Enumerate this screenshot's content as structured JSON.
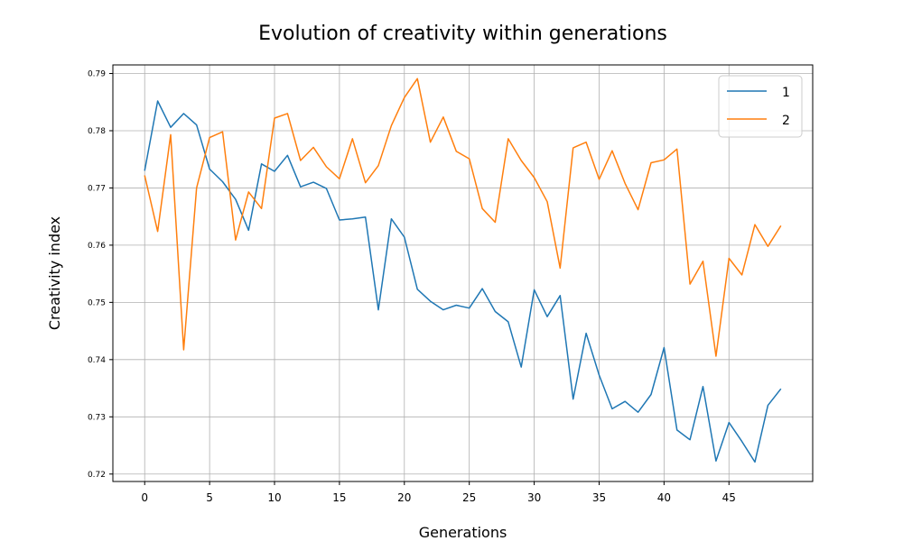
{
  "chart_data": {
    "type": "line",
    "title": "Evolution of creativity within generations",
    "xlabel": "Generations",
    "ylabel": "Creativity index",
    "xlim": [
      -2.45,
      51.45
    ],
    "ylim": [
      0.7187,
      0.7915
    ],
    "xticks": [
      0,
      5,
      10,
      15,
      20,
      25,
      30,
      35,
      40,
      45
    ],
    "yticks": [
      0.72,
      0.73,
      0.74,
      0.75,
      0.76,
      0.77,
      0.78,
      0.79
    ],
    "ytick_labels": [
      "0.72",
      "0.73",
      "0.74",
      "0.75",
      "0.76",
      "0.77",
      "0.78",
      "0.79"
    ],
    "grid": true,
    "legend_position": "top-right",
    "series": [
      {
        "name": "1",
        "color": "#1f77b4",
        "x": [
          0,
          1,
          2,
          3,
          4,
          5,
          6,
          7,
          8,
          9,
          10,
          11,
          12,
          13,
          14,
          15,
          16,
          17,
          18,
          19,
          20,
          21,
          22,
          23,
          24,
          25,
          26,
          27,
          28,
          29,
          30,
          31,
          32,
          33,
          34,
          35,
          36,
          37,
          38,
          39,
          40,
          41,
          42,
          43,
          44,
          45,
          46,
          47,
          48,
          49
        ],
        "values": [
          0.773,
          0.7852,
          0.7806,
          0.783,
          0.781,
          0.7733,
          0.7711,
          0.768,
          0.7626,
          0.7742,
          0.7729,
          0.7757,
          0.7702,
          0.771,
          0.7699,
          0.7644,
          0.7646,
          0.7649,
          0.7487,
          0.7646,
          0.7614,
          0.7523,
          0.7502,
          0.7487,
          0.7495,
          0.749,
          0.7524,
          0.7484,
          0.7466,
          0.7387,
          0.7522,
          0.7475,
          0.7512,
          0.7331,
          0.7446,
          0.7373,
          0.7314,
          0.7327,
          0.7308,
          0.7339,
          0.7421,
          0.7277,
          0.726,
          0.7353,
          0.7223,
          0.729,
          0.7257,
          0.7221,
          0.732,
          0.7349
        ]
      },
      {
        "name": "2",
        "color": "#ff7f0e",
        "x": [
          0,
          1,
          2,
          3,
          4,
          5,
          6,
          7,
          8,
          9,
          10,
          11,
          12,
          13,
          14,
          15,
          16,
          17,
          18,
          19,
          20,
          21,
          22,
          23,
          24,
          25,
          26,
          27,
          28,
          29,
          30,
          31,
          32,
          33,
          34,
          35,
          36,
          37,
          38,
          39,
          40,
          41,
          42,
          43,
          44,
          45,
          46,
          47,
          48,
          49
        ],
        "values": [
          0.7722,
          0.7624,
          0.7793,
          0.7417,
          0.77,
          0.7788,
          0.7798,
          0.7609,
          0.7693,
          0.7664,
          0.7822,
          0.783,
          0.7748,
          0.7771,
          0.7737,
          0.7716,
          0.7786,
          0.7709,
          0.7739,
          0.7809,
          0.7858,
          0.7891,
          0.778,
          0.7824,
          0.7764,
          0.7751,
          0.7664,
          0.764,
          0.7786,
          0.7748,
          0.7718,
          0.7676,
          0.756,
          0.777,
          0.778,
          0.7715,
          0.7765,
          0.7708,
          0.7662,
          0.7744,
          0.7749,
          0.7768,
          0.7532,
          0.7572,
          0.7406,
          0.7577,
          0.7548,
          0.7636,
          0.7598,
          0.7634
        ]
      }
    ]
  }
}
